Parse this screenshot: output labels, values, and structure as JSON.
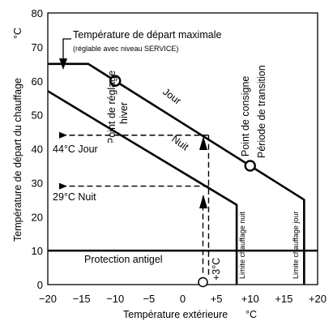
{
  "axes": {
    "x_label": "Température extérieure",
    "x_unit": "°C",
    "y_label": "Température de départ du chauffage",
    "y_unit": "°C",
    "x_ticks": [
      "−20",
      "−15",
      "−10",
      "−5",
      "0",
      "+5",
      "+10",
      "+15",
      "+20"
    ],
    "y_ticks": [
      "0",
      "10",
      "20",
      "30",
      "40",
      "50",
      "60",
      "70",
      "80"
    ],
    "x_range": [
      -20,
      20
    ],
    "y_range": [
      0,
      80
    ]
  },
  "annotations": {
    "max_start_temp": "Température de départ maximale",
    "max_start_temp_note": "(réglable avec niveau SERVICE)",
    "winter_setpoint_line1": "Point de réglage",
    "winter_setpoint_line2": "hiver",
    "setpoint_line1": "Point de consigne",
    "setpoint_line2": "Période de transition",
    "day": "Jour",
    "night": "Nuit",
    "day_44": "44°C Jour",
    "night_29": "29°C Nuit",
    "plus3": "+3°C",
    "frost": "Protection antigel",
    "limit_night": "Limite chauffage nuit",
    "limit_day": "Limite chauffage jour"
  },
  "chart_data": {
    "type": "line",
    "x_unit": "°C",
    "y_unit": "°C",
    "series": [
      {
        "name": "Jour",
        "points": [
          [
            -20,
            65
          ],
          [
            -14,
            65
          ],
          [
            -10,
            60
          ],
          [
            10,
            35
          ],
          [
            18,
            25
          ],
          [
            18,
            0
          ]
        ]
      },
      {
        "name": "Nuit",
        "points": [
          [
            -20,
            57
          ],
          [
            -10,
            45
          ],
          [
            8,
            23.5
          ],
          [
            8,
            0
          ]
        ]
      },
      {
        "name": "Protection antigel",
        "points": [
          [
            -20,
            10
          ],
          [
            20,
            10
          ]
        ]
      }
    ],
    "markers": [
      {
        "label": "Point de réglage hiver",
        "x": -10,
        "y": 60
      },
      {
        "label": "Point de consigne Période de transition",
        "x": 10,
        "y": 35
      },
      {
        "label": "+3°C",
        "x": 3,
        "y": 0
      }
    ],
    "reference_lines": [
      {
        "label": "44°C Jour",
        "y": 44,
        "at_x": 3
      },
      {
        "label": "29°C Nuit",
        "y": 29,
        "at_x": 3
      }
    ]
  }
}
